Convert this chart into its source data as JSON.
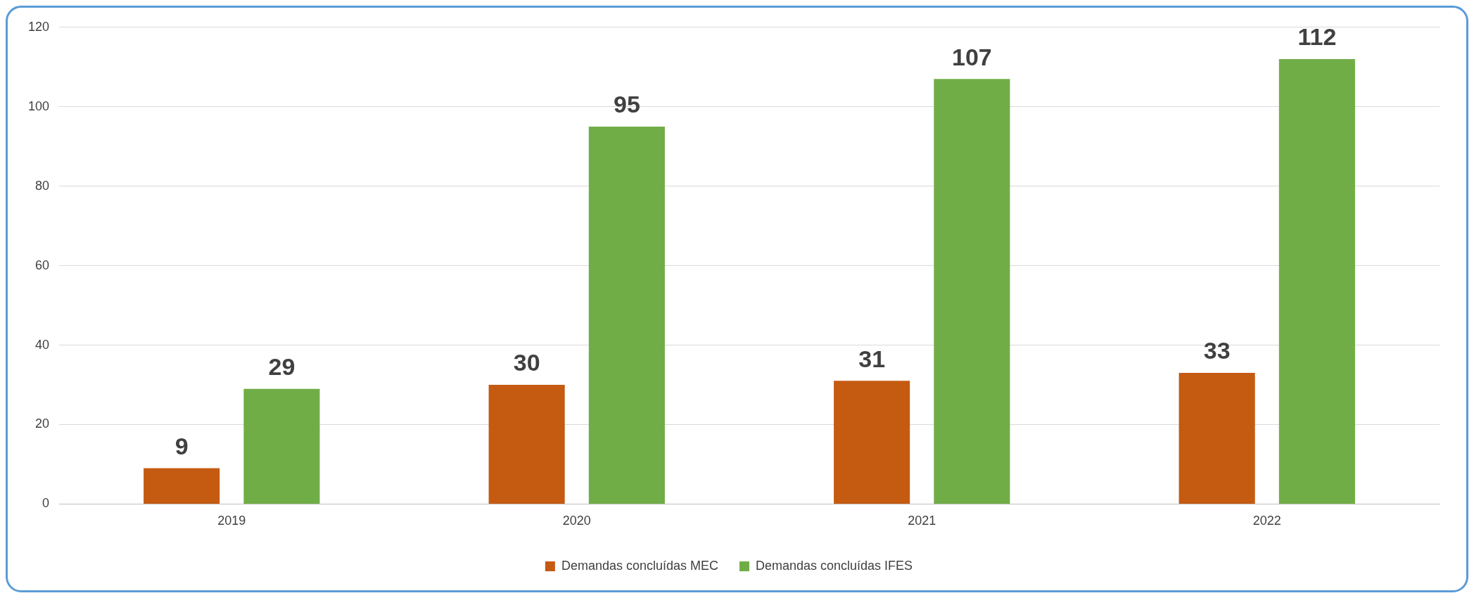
{
  "chart_data": {
    "type": "bar",
    "categories": [
      "2019",
      "2020",
      "2021",
      "2022"
    ],
    "series": [
      {
        "name": "Demandas concluídas MEC",
        "color": "#c55a11",
        "values": [
          9,
          30,
          31,
          33
        ]
      },
      {
        "name": "Demandas concluídas IFES",
        "color": "#70ad47",
        "values": [
          29,
          95,
          107,
          112
        ]
      }
    ],
    "ylim": [
      0,
      120
    ],
    "yticks": [
      0,
      20,
      40,
      60,
      80,
      100,
      120
    ],
    "grid": "y",
    "legend": "bottom",
    "data_labels": true
  }
}
